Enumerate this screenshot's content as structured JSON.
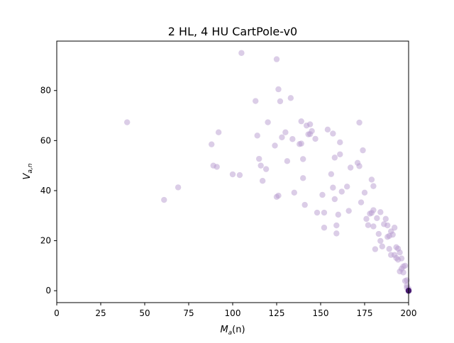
{
  "chart_data": {
    "type": "scatter",
    "title": "2 HL, 4 HU CartPole-v0",
    "xlabel_main": "M",
    "xlabel_sub": "a",
    "xlabel_tail": "(n)",
    "ylabel_main": "V",
    "ylabel_sub": "a,n",
    "xlim": [
      0,
      200
    ],
    "ylim": [
      -4.75,
      99.75
    ],
    "xticks": [
      0,
      25,
      50,
      75,
      100,
      125,
      150,
      175,
      200
    ],
    "yticks": [
      0,
      20,
      40,
      60,
      80
    ],
    "grid": false,
    "marker_color": "#b89bd0",
    "marker_dark_color": "#4a1e73",
    "points": [
      [
        40,
        67.3
      ],
      [
        61,
        36.3
      ],
      [
        69,
        41.3
      ],
      [
        88,
        58.5
      ],
      [
        89,
        50.0
      ],
      [
        91,
        49.5
      ],
      [
        92,
        63.3
      ],
      [
        100,
        46.5
      ],
      [
        104,
        46.2
      ],
      [
        105,
        95.0
      ],
      [
        113,
        75.8
      ],
      [
        114,
        62.0
      ],
      [
        115,
        52.7
      ],
      [
        116,
        50.0
      ],
      [
        117,
        43.9
      ],
      [
        119,
        48.6
      ],
      [
        120,
        67.3
      ],
      [
        124,
        58.0
      ],
      [
        125,
        92.5
      ],
      [
        125,
        37.5
      ],
      [
        126,
        80.5
      ],
      [
        126,
        38.0
      ],
      [
        127,
        75.7
      ],
      [
        128,
        61.3
      ],
      [
        130,
        63.3
      ],
      [
        131,
        51.8
      ],
      [
        133,
        77.0
      ],
      [
        134,
        60.6
      ],
      [
        135,
        39.2
      ],
      [
        138,
        58.6
      ],
      [
        139,
        58.8
      ],
      [
        139,
        67.7
      ],
      [
        140,
        52.6
      ],
      [
        140,
        45.0
      ],
      [
        141,
        34.3
      ],
      [
        142,
        66.0
      ],
      [
        143,
        62.5
      ],
      [
        144,
        66.5
      ],
      [
        144,
        62.6
      ],
      [
        145,
        63.8
      ],
      [
        147,
        60.7
      ],
      [
        148,
        31.2
      ],
      [
        151,
        38.3
      ],
      [
        152,
        25.2
      ],
      [
        152,
        31.2
      ],
      [
        154,
        64.4
      ],
      [
        156,
        46.6
      ],
      [
        157,
        41.2
      ],
      [
        157,
        62.8
      ],
      [
        158,
        53.2
      ],
      [
        158,
        36.6
      ],
      [
        159,
        26.1
      ],
      [
        159,
        22.9
      ],
      [
        160,
        30.4
      ],
      [
        161,
        59.3
      ],
      [
        161,
        54.5
      ],
      [
        162,
        39.6
      ],
      [
        165,
        41.6
      ],
      [
        166,
        31.9
      ],
      [
        167,
        49.2
      ],
      [
        171,
        51.1
      ],
      [
        172,
        67.2
      ],
      [
        172,
        49.8
      ],
      [
        173,
        35.3
      ],
      [
        174,
        56.1
      ],
      [
        175,
        39.2
      ],
      [
        176,
        28.7
      ],
      [
        177,
        26.2
      ],
      [
        178,
        30.8
      ],
      [
        179,
        44.4
      ],
      [
        179,
        31.1
      ],
      [
        180,
        32.2
      ],
      [
        180,
        41.8
      ],
      [
        180,
        25.7
      ],
      [
        181,
        16.6
      ],
      [
        182,
        29.0
      ],
      [
        183,
        22.7
      ],
      [
        184,
        19.9
      ],
      [
        184,
        31.4
      ],
      [
        185,
        17.7
      ],
      [
        186,
        26.6
      ],
      [
        187,
        28.7
      ],
      [
        188,
        21.5
      ],
      [
        188,
        26.1
      ],
      [
        189,
        21.9
      ],
      [
        189,
        16.7
      ],
      [
        190,
        23.7
      ],
      [
        190,
        14.3
      ],
      [
        191,
        22.4
      ],
      [
        192,
        25.2
      ],
      [
        192,
        14.3
      ],
      [
        193,
        13.1
      ],
      [
        193,
        17.4
      ],
      [
        194,
        12.4
      ],
      [
        194,
        16.8
      ],
      [
        195,
        15.3
      ],
      [
        195,
        7.7
      ],
      [
        196,
        8.8
      ],
      [
        196,
        12.9
      ],
      [
        197,
        9.7
      ],
      [
        197,
        7.3
      ],
      [
        198,
        10.0
      ],
      [
        198,
        3.9
      ],
      [
        199,
        2.1
      ],
      [
        199,
        4.2
      ],
      [
        199,
        1.2
      ],
      [
        200,
        0.3
      ],
      [
        200,
        0.0
      ],
      [
        200,
        0.8
      ],
      [
        200,
        0.0
      ]
    ],
    "cluster_point": [
      200,
      0
    ]
  }
}
